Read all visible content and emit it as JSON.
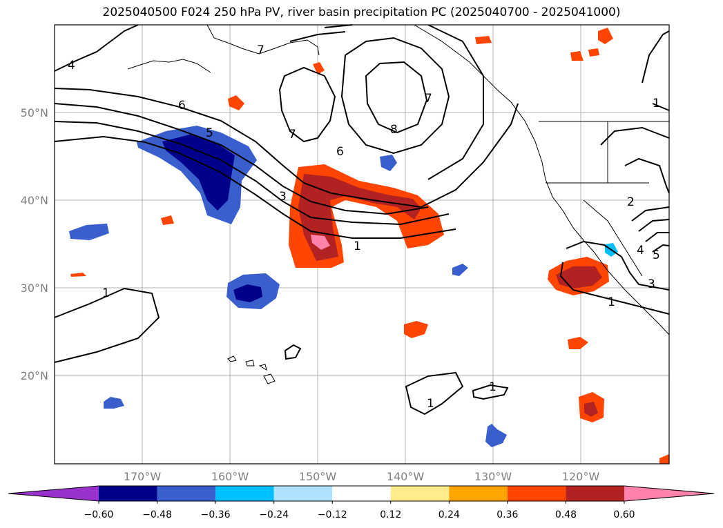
{
  "title": "2025040500 F024 250 hPa PV, river basin precipitation PC (2025040700 - 2025041000)",
  "lat_labels": [
    "50°N",
    "40°N",
    "30°N",
    "20°N"
  ],
  "lon_labels": [
    "170°W",
    "160°W",
    "150°W",
    "140°W",
    "130°W",
    "120°W"
  ],
  "colorbar": {
    "ticks": [
      "−0.60",
      "−0.48",
      "−0.36",
      "−0.24",
      "−0.12",
      "0.12",
      "0.24",
      "0.36",
      "0.48",
      "0.60"
    ],
    "colors": [
      "#9932CC",
      "#00008B",
      "#3A5FCD",
      "#00BFFF",
      "#B0E2FF",
      "#FFFFFF",
      "#FFEC8B",
      "#FFA500",
      "#FF4500",
      "#B22222",
      "#FF82AB"
    ]
  },
  "contour_labels": [
    "4",
    "7",
    "6",
    "5",
    "7",
    "8",
    "6",
    "3",
    "7",
    "1",
    "1",
    "2",
    "4",
    "5",
    "3",
    "1",
    "1",
    "1",
    "1"
  ]
}
